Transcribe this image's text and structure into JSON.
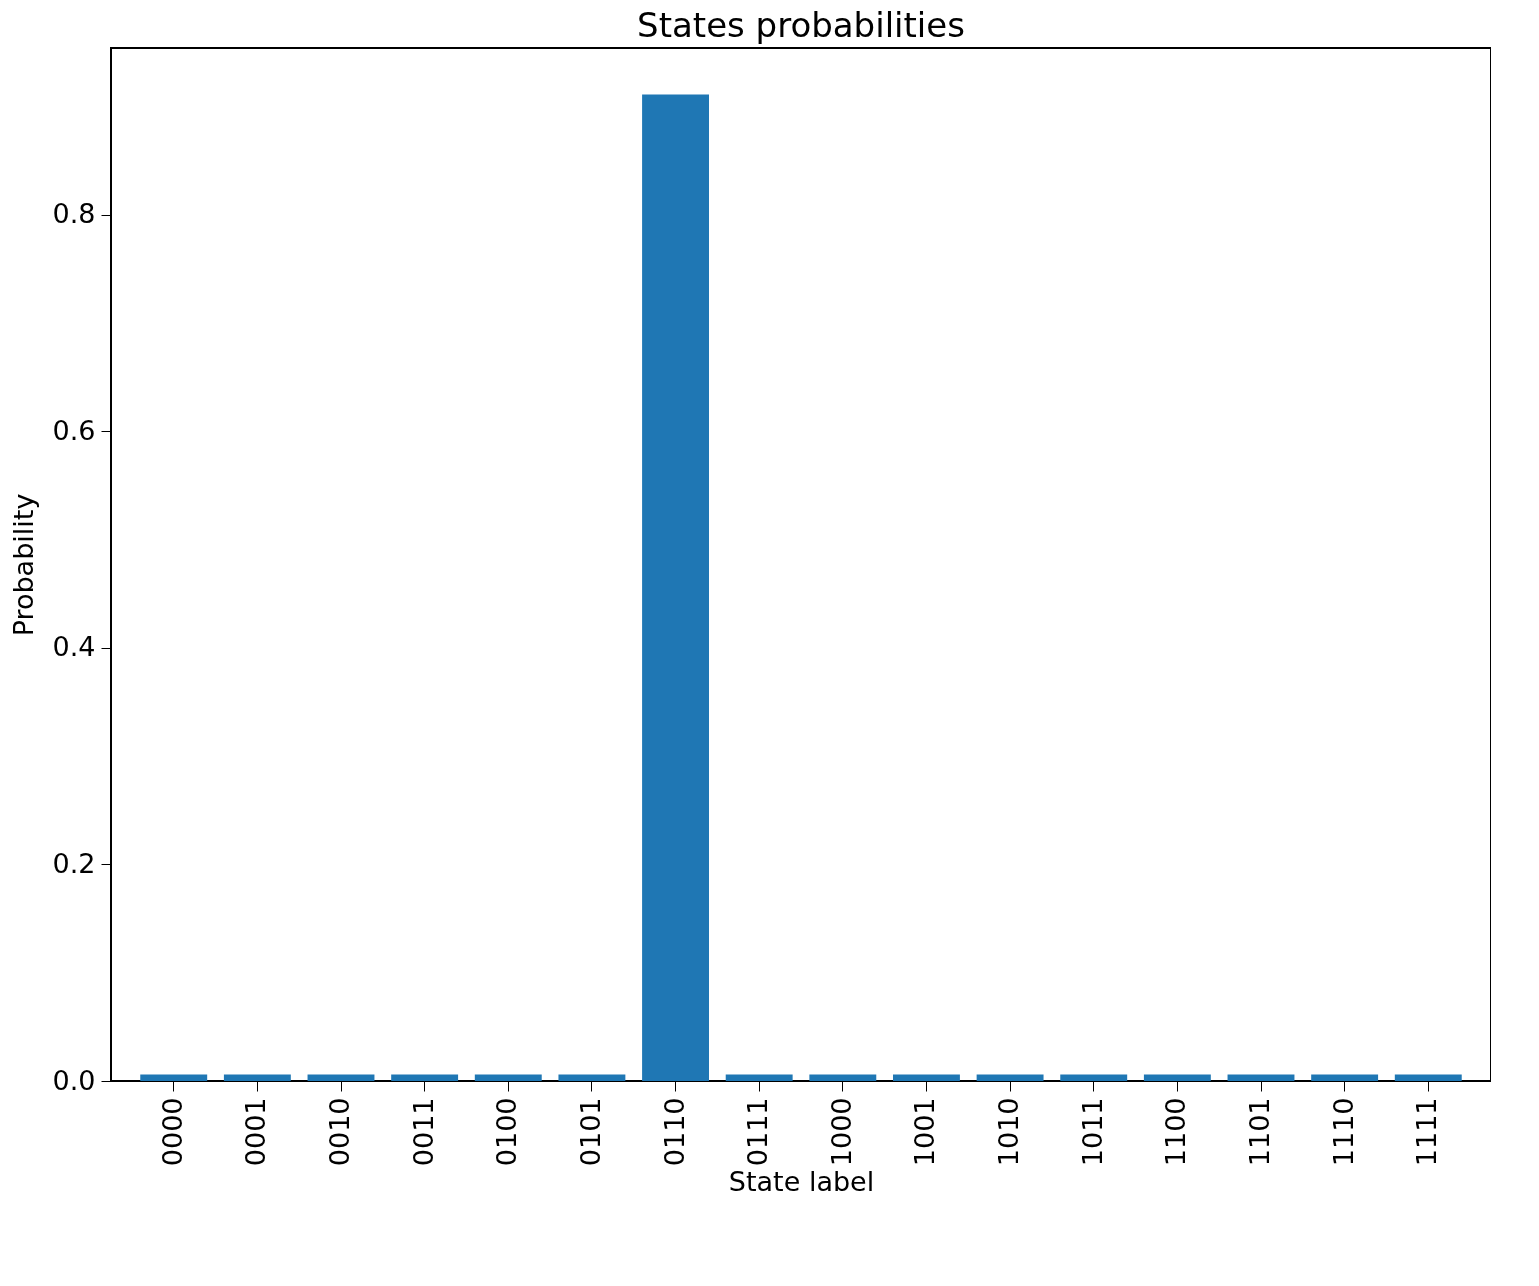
{
  "chart_data": {
    "type": "bar",
    "title": "States probabilities",
    "xlabel": "State label",
    "ylabel": "Probability",
    "categories": [
      "0000",
      "0001",
      "0010",
      "0011",
      "0100",
      "0101",
      "0110",
      "0111",
      "1000",
      "1001",
      "1010",
      "1011",
      "1100",
      "1101",
      "1110",
      "1111"
    ],
    "values": [
      0.006,
      0.006,
      0.006,
      0.006,
      0.006,
      0.006,
      0.911,
      0.006,
      0.006,
      0.006,
      0.006,
      0.006,
      0.006,
      0.006,
      0.006,
      0.006
    ],
    "color": "#1f77b4",
    "ylim": [
      0,
      0.954
    ],
    "yticks": [
      {
        "value": 0,
        "label": "0.0"
      },
      0.2,
      0.4,
      0.6,
      0.8
    ],
    "grid": false
  }
}
